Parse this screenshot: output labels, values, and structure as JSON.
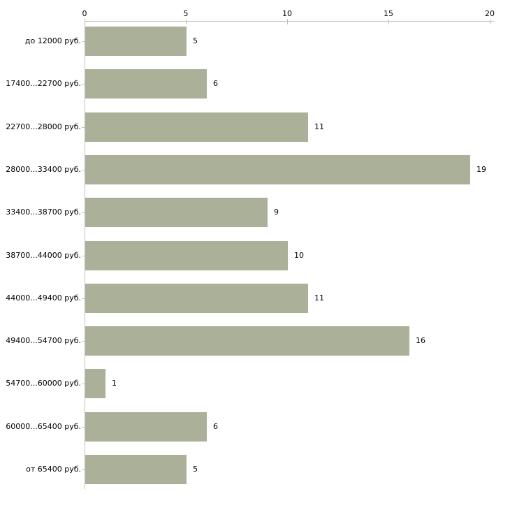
{
  "chart_data": {
    "type": "bar",
    "orientation": "horizontal",
    "title": "",
    "xlabel": "",
    "ylabel": "",
    "categories": [
      "до 12000 руб.",
      "17400...22700 руб.",
      "22700...28000 руб.",
      "28000...33400 руб.",
      "33400...38700 руб.",
      "38700...44000 руб.",
      "44000...49400 руб.",
      "49400...54700 руб.",
      "54700...60000 руб.",
      "60000...65400 руб.",
      "от 65400 руб."
    ],
    "values": [
      5,
      6,
      11,
      19,
      9,
      10,
      11,
      16,
      1,
      6,
      5
    ],
    "xlim": [
      0,
      20
    ],
    "xticks": [
      0,
      5,
      10,
      15,
      20
    ],
    "axis_position": "top",
    "grid": false,
    "legend": false,
    "bar_color": "#abb099",
    "axis_line_color": "#c0c0c0",
    "tick_mark_color": "#c2c49e",
    "text_color": "#000000",
    "background_color": "#ffffff"
  }
}
